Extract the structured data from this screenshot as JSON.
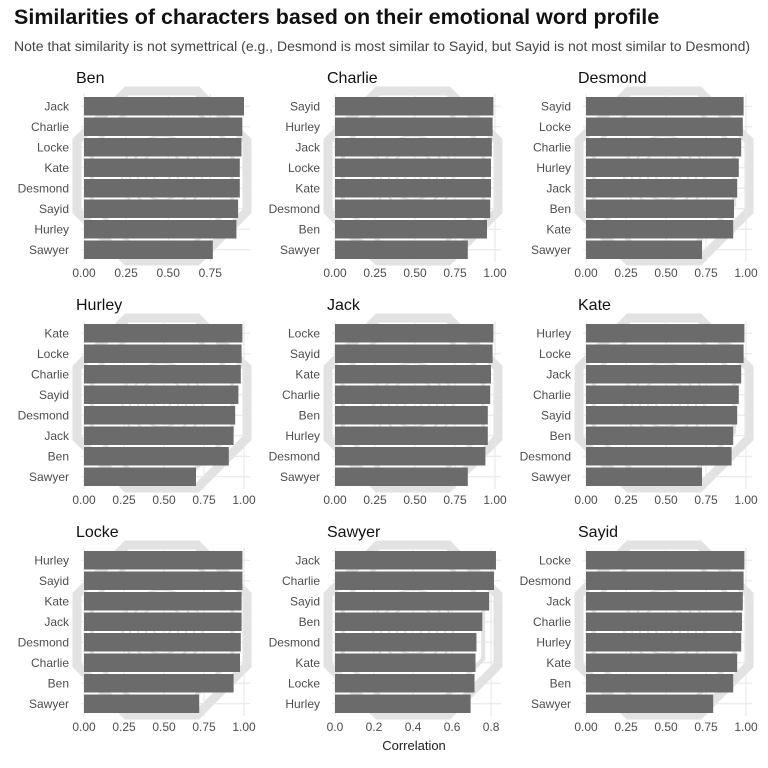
{
  "title": "Similarities of characters based on their emotional word profile",
  "subtitle": "Note that similarity is not symettrical (e.g., Desmond is most similar to Sayid, but Sayid is not most similar to Desmond)",
  "colors": {
    "bar": "#6b6b6b",
    "grid": "#e6e6e6",
    "text": "#4d4d4d",
    "background_symbol": "#e2e2e2"
  },
  "background_symbol_name": "dharma-logo-watermark",
  "chart_data": {
    "type": "bar",
    "orientation": "horizontal",
    "facet_layout": "3x3",
    "xlabel": "Correlation",
    "ylabel": "",
    "panels": [
      {
        "title": "Ben",
        "xlim": [
          0,
          0.95
        ],
        "ticks": [
          0,
          0.25,
          0.5,
          0.75
        ],
        "tick_labels": [
          "0.00",
          "0.25",
          "0.50",
          "0.75"
        ],
        "categories": [
          "Jack",
          "Charlie",
          "Locke",
          "Kate",
          "Desmond",
          "Sayid",
          "Hurley",
          "Sawyer"
        ],
        "values": [
          0.95,
          0.94,
          0.935,
          0.925,
          0.925,
          0.915,
          0.905,
          0.765
        ]
      },
      {
        "title": "Charlie",
        "xlim": [
          0,
          1.0
        ],
        "ticks": [
          0,
          0.25,
          0.5,
          0.75,
          1.0
        ],
        "tick_labels": [
          "0.00",
          "0.25",
          "0.50",
          "0.75",
          "1.00"
        ],
        "categories": [
          "Sayid",
          "Hurley",
          "Jack",
          "Locke",
          "Kate",
          "Desmond",
          "Ben",
          "Sawyer"
        ],
        "values": [
          0.99,
          0.985,
          0.98,
          0.975,
          0.975,
          0.97,
          0.95,
          0.83
        ]
      },
      {
        "title": "Desmond",
        "xlim": [
          0,
          1.0
        ],
        "ticks": [
          0,
          0.25,
          0.5,
          0.75,
          1.0
        ],
        "tick_labels": [
          "0.00",
          "0.25",
          "0.50",
          "0.75",
          "1.00"
        ],
        "categories": [
          "Sayid",
          "Locke",
          "Charlie",
          "Hurley",
          "Jack",
          "Ben",
          "Kate",
          "Sawyer"
        ],
        "values": [
          0.985,
          0.98,
          0.97,
          0.955,
          0.945,
          0.925,
          0.92,
          0.725
        ]
      },
      {
        "title": "Hurley",
        "xlim": [
          0,
          1.0
        ],
        "ticks": [
          0,
          0.25,
          0.5,
          0.75,
          1.0
        ],
        "tick_labels": [
          "0.00",
          "0.25",
          "0.50",
          "0.75",
          "1.00"
        ],
        "categories": [
          "Kate",
          "Locke",
          "Charlie",
          "Sayid",
          "Desmond",
          "Jack",
          "Ben",
          "Sawyer"
        ],
        "values": [
          0.99,
          0.985,
          0.98,
          0.965,
          0.945,
          0.935,
          0.905,
          0.7
        ]
      },
      {
        "title": "Jack",
        "xlim": [
          0,
          1.0
        ],
        "ticks": [
          0,
          0.25,
          0.5,
          0.75,
          1.0
        ],
        "tick_labels": [
          "0.00",
          "0.25",
          "0.50",
          "0.75",
          "1.00"
        ],
        "categories": [
          "Locke",
          "Sayid",
          "Kate",
          "Charlie",
          "Ben",
          "Hurley",
          "Desmond",
          "Sawyer"
        ],
        "values": [
          0.99,
          0.985,
          0.975,
          0.97,
          0.955,
          0.955,
          0.94,
          0.83
        ]
      },
      {
        "title": "Kate",
        "xlim": [
          0,
          1.0
        ],
        "ticks": [
          0,
          0.25,
          0.5,
          0.75,
          1.0
        ],
        "tick_labels": [
          "0.00",
          "0.25",
          "0.50",
          "0.75",
          "1.00"
        ],
        "categories": [
          "Hurley",
          "Locke",
          "Jack",
          "Charlie",
          "Sayid",
          "Ben",
          "Desmond",
          "Sawyer"
        ],
        "values": [
          0.99,
          0.985,
          0.97,
          0.955,
          0.945,
          0.92,
          0.91,
          0.725
        ]
      },
      {
        "title": "Locke",
        "xlim": [
          0,
          1.0
        ],
        "ticks": [
          0,
          0.25,
          0.5,
          0.75,
          1.0
        ],
        "tick_labels": [
          "0.00",
          "0.25",
          "0.50",
          "0.75",
          "1.00"
        ],
        "categories": [
          "Hurley",
          "Sayid",
          "Kate",
          "Jack",
          "Desmond",
          "Charlie",
          "Ben",
          "Sawyer"
        ],
        "values": [
          0.99,
          0.99,
          0.985,
          0.985,
          0.98,
          0.975,
          0.935,
          0.72
        ]
      },
      {
        "title": "Sawyer",
        "xlim": [
          0,
          0.82
        ],
        "ticks": [
          0,
          0.2,
          0.4,
          0.6,
          0.8
        ],
        "tick_labels": [
          "0.0",
          "0.2",
          "0.4",
          "0.6",
          "0.8"
        ],
        "categories": [
          "Jack",
          "Charlie",
          "Sayid",
          "Ben",
          "Desmond",
          "Kate",
          "Locke",
          "Hurley"
        ],
        "values": [
          0.825,
          0.815,
          0.79,
          0.755,
          0.725,
          0.72,
          0.715,
          0.695
        ]
      },
      {
        "title": "Sayid",
        "xlim": [
          0,
          1.0
        ],
        "ticks": [
          0,
          0.25,
          0.5,
          0.75,
          1.0
        ],
        "tick_labels": [
          "0.00",
          "0.25",
          "0.50",
          "0.75",
          "1.00"
        ],
        "categories": [
          "Locke",
          "Desmond",
          "Jack",
          "Charlie",
          "Hurley",
          "Kate",
          "Ben",
          "Sawyer"
        ],
        "values": [
          0.99,
          0.985,
          0.98,
          0.975,
          0.97,
          0.945,
          0.92,
          0.795
        ]
      }
    ]
  }
}
